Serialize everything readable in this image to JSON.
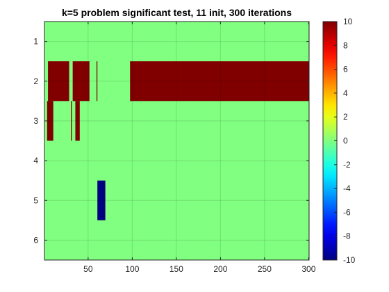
{
  "chart_data": {
    "type": "heatmap",
    "title": "k=5 problem significant test, 11 init, 300 iterations",
    "xlabel": "",
    "ylabel": "",
    "x_range": [
      0.5,
      300.5
    ],
    "y_rows": [
      1,
      2,
      3,
      4,
      5,
      6
    ],
    "xlim": [
      0.5,
      300.5
    ],
    "ylim": [
      0.5,
      6.5
    ],
    "x_ticks": [
      50,
      100,
      150,
      200,
      250,
      300
    ],
    "y_ticks": [
      1,
      2,
      3,
      4,
      5,
      6
    ],
    "grid": true,
    "background_value": 0,
    "color_limits": [
      -10,
      10
    ],
    "colormap": "jet",
    "colorbar_ticks": [
      10,
      8,
      6,
      4,
      2,
      0,
      -2,
      -4,
      -6,
      -8,
      -10
    ],
    "cells": [
      {
        "row": 2,
        "x_start": 5,
        "x_end": 28,
        "value": 10
      },
      {
        "row": 2,
        "x_start": 33,
        "x_end": 51,
        "value": 10
      },
      {
        "row": 2,
        "x_start": 60,
        "x_end": 60,
        "value": 10
      },
      {
        "row": 2,
        "x_start": 98,
        "x_end": 300,
        "value": 10
      },
      {
        "row": 3,
        "x_start": 4,
        "x_end": 10,
        "value": 10
      },
      {
        "row": 3,
        "x_start": 31,
        "x_end": 31,
        "value": 10
      },
      {
        "row": 3,
        "x_start": 36,
        "x_end": 40,
        "value": 10
      },
      {
        "row": 5,
        "x_start": 61,
        "x_end": 69,
        "value": -10
      }
    ]
  }
}
